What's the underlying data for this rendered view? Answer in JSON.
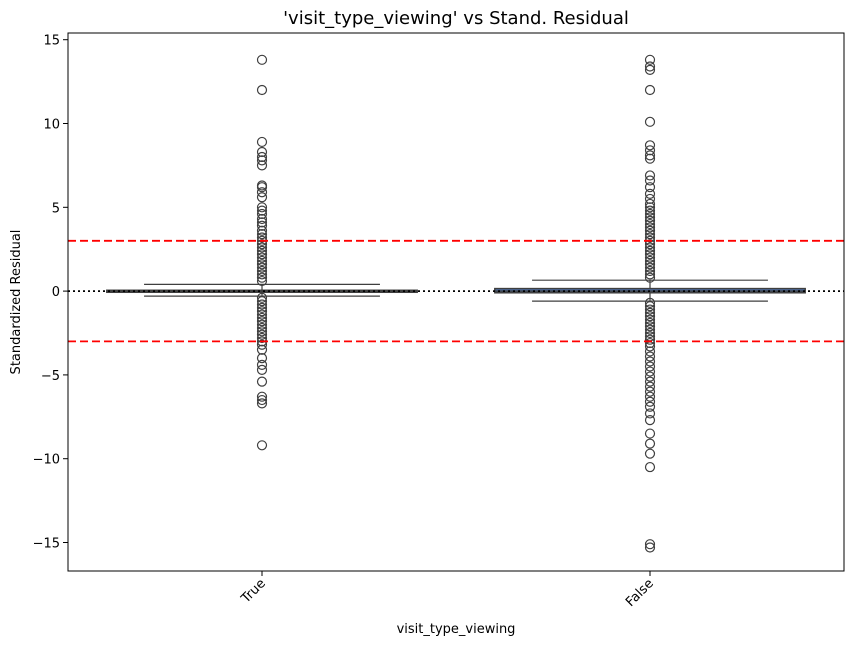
{
  "chart_data": {
    "type": "box",
    "title": "'visit_type_viewing' vs Stand. Residual",
    "xlabel": "visit_type_viewing",
    "ylabel": "Standardized Residual",
    "categories": [
      "True",
      "False"
    ],
    "ylim": [
      -16.7,
      15.4
    ],
    "yticks": [
      15,
      10,
      5,
      0,
      -5,
      -10,
      -15
    ],
    "ytick_labels": [
      "15",
      "10",
      "5",
      "0",
      "−5",
      "−10",
      "−15"
    ],
    "reference_lines": [
      {
        "y": 3,
        "color": "#ff0000",
        "style": "dashed"
      },
      {
        "y": -3,
        "color": "#ff0000",
        "style": "dashed"
      },
      {
        "y": 0,
        "color": "#000000",
        "style": "dotted"
      }
    ],
    "boxes": [
      {
        "category": "True",
        "q1": -0.05,
        "median": 0.0,
        "q3": 0.05,
        "whisker_low": -0.3,
        "whisker_high": 0.4,
        "outliers": [
          13.8,
          12.0,
          8.9,
          8.3,
          8.0,
          7.8,
          7.5,
          6.3,
          6.2,
          5.9,
          5.6,
          5.0,
          4.8,
          4.6,
          4.3,
          4.1,
          3.9,
          3.6,
          3.4,
          3.2,
          3.0,
          2.8,
          2.6,
          2.4,
          2.2,
          2.0,
          1.8,
          1.6,
          1.4,
          1.2,
          1.0,
          0.8,
          0.6,
          -0.4,
          -0.6,
          -0.8,
          -1.0,
          -1.2,
          -1.4,
          -1.6,
          -1.8,
          -2.0,
          -2.2,
          -2.4,
          -2.6,
          -2.8,
          -3.0,
          -3.2,
          -3.5,
          -4.0,
          -4.4,
          -4.7,
          -5.4,
          -6.3,
          -6.5,
          -6.7,
          -9.2
        ]
      },
      {
        "category": "False",
        "q1": -0.1,
        "median": 0.0,
        "q3": 0.15,
        "whisker_low": -0.6,
        "whisker_high": 0.65,
        "outliers": [
          13.8,
          13.4,
          13.2,
          12.0,
          10.1,
          8.7,
          8.4,
          8.1,
          7.9,
          6.9,
          6.6,
          6.2,
          5.8,
          5.5,
          5.2,
          5.0,
          4.8,
          4.6,
          4.4,
          4.2,
          4.0,
          3.8,
          3.6,
          3.4,
          3.2,
          3.0,
          2.8,
          2.6,
          2.4,
          2.2,
          2.0,
          1.8,
          1.6,
          1.4,
          1.2,
          1.0,
          0.8,
          -0.7,
          -0.9,
          -1.1,
          -1.3,
          -1.5,
          -1.7,
          -1.9,
          -2.1,
          -2.3,
          -2.5,
          -2.7,
          -2.9,
          -3.1,
          -3.3,
          -3.6,
          -3.9,
          -4.2,
          -4.5,
          -4.8,
          -5.1,
          -5.4,
          -5.7,
          -6.0,
          -6.3,
          -6.6,
          -6.9,
          -7.3,
          -7.7,
          -8.5,
          -9.1,
          -9.7,
          -10.5,
          -15.1,
          -15.3
        ]
      }
    ],
    "colors": {
      "box_fill": "#4c72b0",
      "box_edge": "#3f3f3f",
      "outlier_edge": "#3f3f3f",
      "reference_red": "#ff0000"
    }
  }
}
